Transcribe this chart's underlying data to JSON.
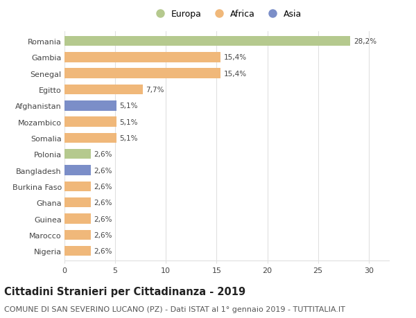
{
  "countries": [
    "Romania",
    "Gambia",
    "Senegal",
    "Egitto",
    "Afghanistan",
    "Mozambico",
    "Somalia",
    "Polonia",
    "Bangladesh",
    "Burkina Faso",
    "Ghana",
    "Guinea",
    "Marocco",
    "Nigeria"
  ],
  "values": [
    28.2,
    15.4,
    15.4,
    7.7,
    5.1,
    5.1,
    5.1,
    2.6,
    2.6,
    2.6,
    2.6,
    2.6,
    2.6,
    2.6
  ],
  "labels": [
    "28,2%",
    "15,4%",
    "15,4%",
    "7,7%",
    "5,1%",
    "5,1%",
    "5,1%",
    "2,6%",
    "2,6%",
    "2,6%",
    "2,6%",
    "2,6%",
    "2,6%",
    "2,6%"
  ],
  "colors": [
    "#b5c98e",
    "#f0b87a",
    "#f0b87a",
    "#f0b87a",
    "#7b8ec8",
    "#f0b87a",
    "#f0b87a",
    "#b5c98e",
    "#7b8ec8",
    "#f0b87a",
    "#f0b87a",
    "#f0b87a",
    "#f0b87a",
    "#f0b87a"
  ],
  "legend_labels": [
    "Europa",
    "Africa",
    "Asia"
  ],
  "legend_colors": [
    "#b5c98e",
    "#f0b87a",
    "#7b8ec8"
  ],
  "title": "Cittadini Stranieri per Cittadinanza - 2019",
  "subtitle": "COMUNE DI SAN SEVERINO LUCANO (PZ) - Dati ISTAT al 1° gennaio 2019 - TUTTITALIA.IT",
  "xlim": [
    0,
    32
  ],
  "xticks": [
    0,
    5,
    10,
    15,
    20,
    25,
    30
  ],
  "background_color": "#ffffff",
  "grid_color": "#e0e0e0",
  "bar_height": 0.62,
  "title_fontsize": 10.5,
  "subtitle_fontsize": 8,
  "label_fontsize": 7.5,
  "tick_fontsize": 8,
  "legend_fontsize": 9
}
